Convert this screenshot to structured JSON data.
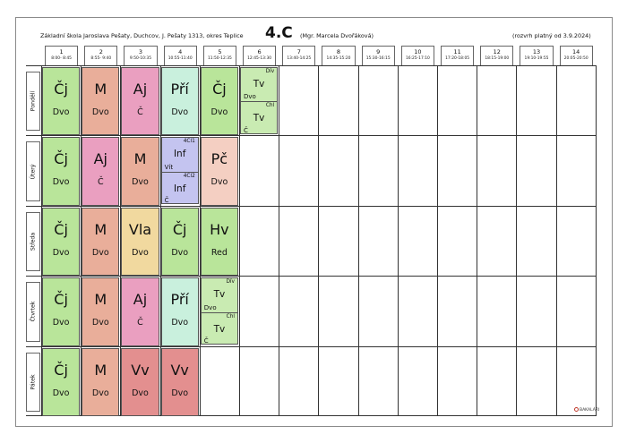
{
  "header": {
    "school": "Základní škola Jaroslava Pešaty, Duchcov, J. Pešaty 1313, okres Teplice",
    "class_name": "4.C",
    "class_teacher": "(Mgr. Marcela Dvořáková)",
    "valid_from": "(rozvrh platný od 3.9.2024)"
  },
  "periods": [
    {
      "num": "1",
      "time": "8:00- 8:45"
    },
    {
      "num": "2",
      "time": "8:55- 9:40"
    },
    {
      "num": "3",
      "time": "9:50-10:35"
    },
    {
      "num": "4",
      "time": "10:55-11:40"
    },
    {
      "num": "5",
      "time": "11:50-12:35"
    },
    {
      "num": "6",
      "time": "12:45-13:30"
    },
    {
      "num": "7",
      "time": "13:40-14:25"
    },
    {
      "num": "8",
      "time": "14:35-15:20"
    },
    {
      "num": "9",
      "time": "15:30-16:15"
    },
    {
      "num": "10",
      "time": "16:25-17:10"
    },
    {
      "num": "11",
      "time": "17:20-18:05"
    },
    {
      "num": "12",
      "time": "18:15-19:00"
    },
    {
      "num": "13",
      "time": "19:10-19:55"
    },
    {
      "num": "14",
      "time": "20:05-20:50"
    }
  ],
  "days": [
    "Pondělí",
    "Úterý",
    "Středa",
    "Čtvrtek",
    "Pátek"
  ],
  "colors": {
    "Cj": "#b9e59a",
    "M": "#e9ae9a",
    "Aj": "#ea9fc0",
    "Pri": "#c9f0dd",
    "Inf": "#c4c4f0",
    "Pc": "#f4cfc2",
    "Vla": "#f1d99f",
    "Hv": "#b9e59a",
    "Vv": "#e38f8f",
    "Tv": "#c9ebb2"
  },
  "schedule": [
    {
      "day": "Pondělí",
      "lessons": [
        {
          "period": 1,
          "subject": "Čj",
          "teacher": "Dvo",
          "color": "#b9e59a"
        },
        {
          "period": 2,
          "subject": "M",
          "teacher": "Dvo",
          "color": "#e9ae9a"
        },
        {
          "period": 3,
          "subject": "Aj",
          "teacher": "Č",
          "color": "#ea9fc0"
        },
        {
          "period": 4,
          "subject": "Pří",
          "teacher": "Dvo",
          "color": "#c9f0dd"
        },
        {
          "period": 5,
          "subject": "Čj",
          "teacher": "Dvo",
          "color": "#b9e59a"
        },
        {
          "period": 6,
          "split": true,
          "color": "#c9ebb2",
          "top": {
            "subject": "Tv",
            "group": "Dív",
            "teacher": "Dvo"
          },
          "bottom": {
            "subject": "Tv",
            "group": "Chl",
            "teacher": "Č"
          }
        }
      ]
    },
    {
      "day": "Úterý",
      "lessons": [
        {
          "period": 1,
          "subject": "Čj",
          "teacher": "Dvo",
          "color": "#b9e59a"
        },
        {
          "period": 2,
          "subject": "Aj",
          "teacher": "Č",
          "color": "#ea9fc0"
        },
        {
          "period": 3,
          "subject": "M",
          "teacher": "Dvo",
          "color": "#e9ae9a"
        },
        {
          "period": 4,
          "split": true,
          "color": "#c4c4f0",
          "top": {
            "subject": "Inf",
            "group": "4Cl1",
            "teacher": "Vít"
          },
          "bottom": {
            "subject": "Inf",
            "group": "4Cl2",
            "teacher": "Č"
          }
        },
        {
          "period": 5,
          "subject": "Pč",
          "teacher": "Dvo",
          "color": "#f4cfc2"
        }
      ]
    },
    {
      "day": "Středa",
      "lessons": [
        {
          "period": 1,
          "subject": "Čj",
          "teacher": "Dvo",
          "color": "#b9e59a"
        },
        {
          "period": 2,
          "subject": "M",
          "teacher": "Dvo",
          "color": "#e9ae9a"
        },
        {
          "period": 3,
          "subject": "Vla",
          "teacher": "Dvo",
          "color": "#f1d99f"
        },
        {
          "period": 4,
          "subject": "Čj",
          "teacher": "Dvo",
          "color": "#b9e59a"
        },
        {
          "period": 5,
          "subject": "Hv",
          "teacher": "Red",
          "color": "#b9e59a"
        }
      ]
    },
    {
      "day": "Čtvrtek",
      "lessons": [
        {
          "period": 1,
          "subject": "Čj",
          "teacher": "Dvo",
          "color": "#b9e59a"
        },
        {
          "period": 2,
          "subject": "M",
          "teacher": "Dvo",
          "color": "#e9ae9a"
        },
        {
          "period": 3,
          "subject": "Aj",
          "teacher": "Č",
          "color": "#ea9fc0"
        },
        {
          "period": 4,
          "subject": "Pří",
          "teacher": "Dvo",
          "color": "#c9f0dd"
        },
        {
          "period": 5,
          "split": true,
          "color": "#c9ebb2",
          "top": {
            "subject": "Tv",
            "group": "Dív",
            "teacher": "Dvo"
          },
          "bottom": {
            "subject": "Tv",
            "group": "Chl",
            "teacher": "Č"
          }
        }
      ]
    },
    {
      "day": "Pátek",
      "lessons": [
        {
          "period": 1,
          "subject": "Čj",
          "teacher": "Dvo",
          "color": "#b9e59a"
        },
        {
          "period": 2,
          "subject": "M",
          "teacher": "Dvo",
          "color": "#e9ae9a"
        },
        {
          "period": 3,
          "subject": "Vv",
          "teacher": "Dvo",
          "color": "#e38f8f"
        },
        {
          "period": 4,
          "subject": "Vv",
          "teacher": "Dvo",
          "color": "#e38f8f"
        }
      ]
    }
  ],
  "footer": {
    "logo_text": "BAKALÁŘI",
    "logo_icon": "bakalari-logo-icon"
  }
}
